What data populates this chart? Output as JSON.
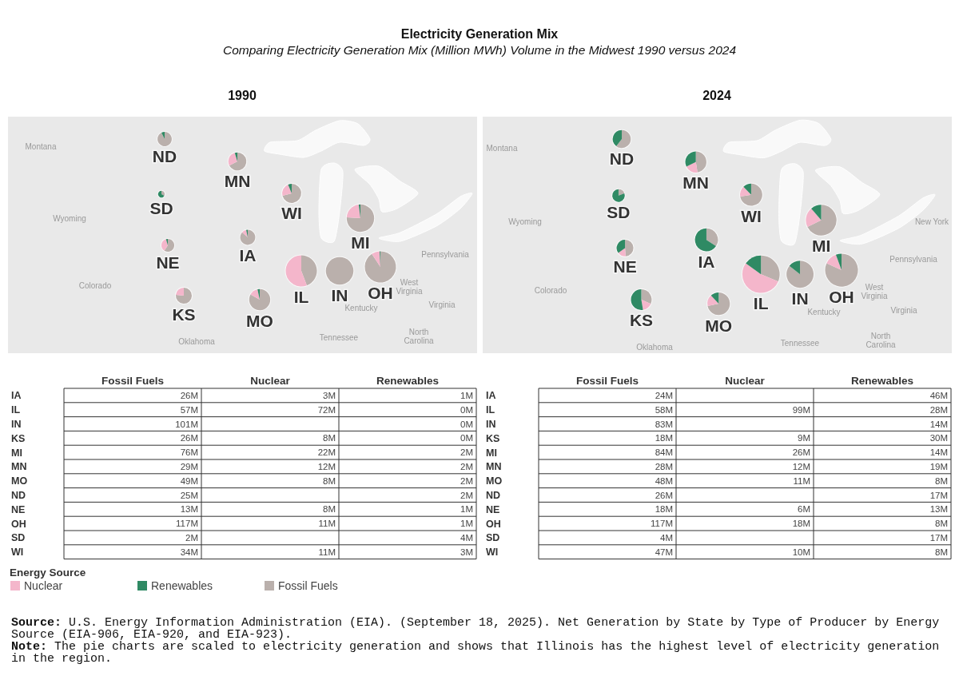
{
  "chart_data": [
    {
      "type": "other",
      "title": "Electricity Generation Mix",
      "subtitle": "Comparing Electricity Generation Mix (Million MWh) Volume in the Midwest 1990 versus 2024",
      "annotations": [
        "Source: U.S. Energy Information Administration (EIA). (September 18, 2025). Net Generation by State by Type of Producer by Energy Source (EIA-906, EIA-920, and EIA-923).",
        "Note: The pie charts are scaled to electricity generation and shows that Illinois has the highest level of electricity generation in the region."
      ]
    },
    {
      "type": "other",
      "title": "1990",
      "categories": [
        "IA",
        "IL",
        "IN",
        "KS",
        "MI",
        "MN",
        "MO",
        "ND",
        "NE",
        "OH",
        "SD",
        "WI"
      ],
      "series": [
        {
          "name": "Fossil Fuels",
          "color": "#bab0ac",
          "values": [
            26,
            57,
            101,
            26,
            76,
            29,
            49,
            25,
            13,
            117,
            2,
            34
          ],
          "value_labels": [
            "26M",
            "57M",
            "101M",
            "26M",
            "76M",
            "29M",
            "49M",
            "25M",
            "13M",
            "117M",
            "2M",
            "34M"
          ]
        },
        {
          "name": "Nuclear",
          "color": "#f4b6cb",
          "values": [
            3,
            72,
            null,
            8,
            22,
            12,
            8,
            null,
            8,
            11,
            null,
            11
          ],
          "value_labels": [
            "3M",
            "72M",
            null,
            "8M",
            "22M",
            "12M",
            "8M",
            null,
            "8M",
            "11M",
            null,
            "11M"
          ]
        },
        {
          "name": "Renewables",
          "color": "#2f8a64",
          "values": [
            1,
            0,
            0,
            0,
            2,
            2,
            2,
            2,
            1,
            1,
            4,
            3
          ],
          "value_labels": [
            "1M",
            "0M",
            "0M",
            "0M",
            "2M",
            "2M",
            "2M",
            "2M",
            "1M",
            "1M",
            "4M",
            "3M"
          ]
        }
      ],
      "legend": "bottom left",
      "legend_title": "Energy Source",
      "annotations": [
        "Montana",
        "Wyoming",
        "Colorado",
        "Oklahoma",
        "Kentucky",
        "West Virginia",
        "Virginia",
        "Pennsylvania",
        "Tennessee",
        "North Carolina"
      ]
    },
    {
      "type": "other",
      "title": "2024",
      "categories": [
        "IA",
        "IL",
        "IN",
        "KS",
        "MI",
        "MN",
        "MO",
        "ND",
        "NE",
        "OH",
        "SD",
        "WI"
      ],
      "series": [
        {
          "name": "Fossil Fuels",
          "values": [
            24,
            58,
            83,
            18,
            84,
            28,
            48,
            26,
            18,
            117,
            4,
            47
          ],
          "value_labels": [
            "24M",
            "58M",
            "83M",
            "18M",
            "84M",
            "28M",
            "48M",
            "26M",
            "18M",
            "117M",
            "4M",
            "47M"
          ]
        },
        {
          "name": "Nuclear",
          "values": [
            null,
            99,
            null,
            9,
            26,
            12,
            11,
            null,
            6,
            18,
            null,
            10
          ],
          "value_labels": [
            null,
            "99M",
            null,
            "9M",
            "26M",
            "12M",
            "11M",
            null,
            "6M",
            "18M",
            null,
            "10M"
          ]
        },
        {
          "name": "Renewables",
          "values": [
            46,
            28,
            14,
            30,
            14,
            19,
            8,
            17,
            13,
            8,
            17,
            8
          ],
          "value_labels": [
            "46M",
            "28M",
            "14M",
            "30M",
            "14M",
            "19M",
            "8M",
            "17M",
            "13M",
            "8M",
            "17M",
            "8M"
          ]
        }
      ],
      "annotations": [
        "Montana",
        "Wyoming",
        "Colorado",
        "Oklahoma",
        "Kentucky",
        "West Virginia",
        "Virginia",
        "Pennsylvania",
        "Tennessee",
        "North Carolina",
        "New York"
      ]
    }
  ]
}
